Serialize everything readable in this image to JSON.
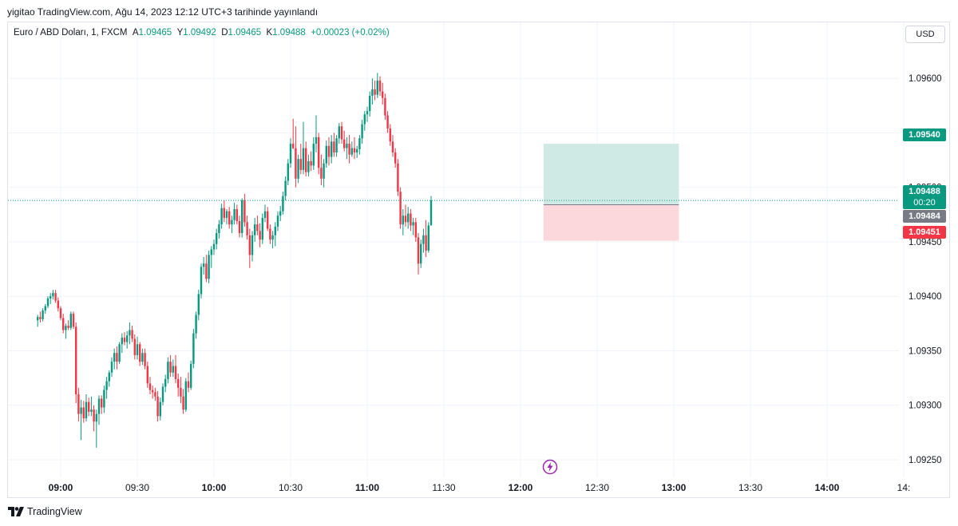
{
  "header": {
    "publish_line": "yigitao TradingView.com, Ağu 14, 2023 12:12 UTC+3 tarihinde yayınlandı"
  },
  "legend": {
    "symbol": "Euro / ABD Doları, 1, FXCM",
    "open_label": "A",
    "open": "1.09465",
    "high_label": "Y",
    "high": "1.09492",
    "low_label": "D",
    "low": "1.09465",
    "close_label": "K",
    "close": "1.09488",
    "change": "+0.00023 (+0.02%)"
  },
  "currency_button": "USD",
  "price_tags": {
    "last_price": "1.09488",
    "countdown": "00:20",
    "take_profit": "1.09540",
    "entry": "1.09484",
    "stop_loss": "1.09451"
  },
  "footer": {
    "brand": "TradingView"
  },
  "colors": {
    "up": "#089981",
    "down": "#f23645",
    "profit_zone": "#cfeae4",
    "loss_zone": "#fcd7dc",
    "grid": "#f0f3fa",
    "axis_text": "#131722"
  },
  "icons": {
    "flash": "lightning-bolt-icon",
    "logo": "tradingview-logo-icon"
  },
  "chart_data": {
    "type": "candlestick",
    "symbol": "EURUSD",
    "timeframe": "1",
    "ylim": [
      1.09215,
      1.09635
    ],
    "y_ticks": [
      "1.09250",
      "1.09300",
      "1.09350",
      "1.09400",
      "1.09450",
      "1.09500",
      "1.09550",
      "1.09600"
    ],
    "x_ticks": [
      {
        "label": "09:00",
        "minute": 540,
        "bold": true
      },
      {
        "label": "09:30",
        "minute": 570,
        "bold": false
      },
      {
        "label": "10:00",
        "minute": 600,
        "bold": true
      },
      {
        "label": "10:30",
        "minute": 630,
        "bold": false
      },
      {
        "label": "11:00",
        "minute": 660,
        "bold": true
      },
      {
        "label": "11:30",
        "minute": 690,
        "bold": false
      },
      {
        "label": "12:00",
        "minute": 720,
        "bold": true
      },
      {
        "label": "12:30",
        "minute": 750,
        "bold": false
      },
      {
        "label": "13:00",
        "minute": 780,
        "bold": true
      },
      {
        "label": "13:30",
        "minute": 810,
        "bold": false
      },
      {
        "label": "14:00",
        "minute": 840,
        "bold": true
      },
      {
        "label": "14:",
        "minute": 870,
        "bold": false
      }
    ],
    "xlim_minutes": [
      529.5,
      876
    ],
    "last_price": 1.09488,
    "position": {
      "start_minute": 729,
      "end_minute": 782,
      "take_profit": 1.0954,
      "entry": 1.09484,
      "stop_loss": 1.09451
    },
    "candles": [
      [
        1.09378,
        1.09383,
        1.09372,
        1.09381
      ],
      [
        1.09381,
        1.09386,
        1.09376,
        1.09379
      ],
      [
        1.09379,
        1.09389,
        1.09377,
        1.09387
      ],
      [
        1.09387,
        1.09393,
        1.09384,
        1.09391
      ],
      [
        1.09391,
        1.094,
        1.09389,
        1.09398
      ],
      [
        1.09398,
        1.09403,
        1.09393,
        1.094
      ],
      [
        1.094,
        1.09406,
        1.09397,
        1.09403
      ],
      [
        1.09403,
        1.09406,
        1.09394,
        1.09396
      ],
      [
        1.09396,
        1.09399,
        1.09386,
        1.09389
      ],
      [
        1.09389,
        1.09391,
        1.09378,
        1.0938
      ],
      [
        1.0938,
        1.09384,
        1.09366,
        1.09369
      ],
      [
        1.09369,
        1.09375,
        1.09361,
        1.09373
      ],
      [
        1.09373,
        1.09378,
        1.09369,
        1.09371
      ],
      [
        1.09371,
        1.09386,
        1.09369,
        1.09384
      ],
      [
        1.09384,
        1.09386,
        1.0937,
        1.09372
      ],
      [
        1.09372,
        1.09376,
        1.09302,
        1.0931
      ],
      [
        1.0931,
        1.09316,
        1.09285,
        1.09292
      ],
      [
        1.09292,
        1.09305,
        1.09268,
        1.09298
      ],
      [
        1.09298,
        1.09304,
        1.09284,
        1.09288
      ],
      [
        1.09288,
        1.0931,
        1.09285,
        1.09303
      ],
      [
        1.09303,
        1.09307,
        1.0929,
        1.09294
      ],
      [
        1.09294,
        1.09308,
        1.0929,
        1.09296
      ],
      [
        1.09296,
        1.093,
        1.09276,
        1.09285
      ],
      [
        1.09285,
        1.09296,
        1.09261,
        1.09292
      ],
      [
        1.09292,
        1.09309,
        1.09282,
        1.09306
      ],
      [
        1.09306,
        1.09309,
        1.09292,
        1.09298
      ],
      [
        1.09298,
        1.09318,
        1.09293,
        1.09314
      ],
      [
        1.09314,
        1.09326,
        1.09306,
        1.09322
      ],
      [
        1.09322,
        1.09332,
        1.09317,
        1.0933
      ],
      [
        1.0933,
        1.09344,
        1.09326,
        1.0934
      ],
      [
        1.0934,
        1.09352,
        1.09333,
        1.09348
      ],
      [
        1.09348,
        1.09354,
        1.09333,
        1.0934
      ],
      [
        1.0934,
        1.09358,
        1.09338,
        1.09356
      ],
      [
        1.09356,
        1.09366,
        1.09348,
        1.09362
      ],
      [
        1.09362,
        1.09367,
        1.09355,
        1.09358
      ],
      [
        1.09358,
        1.09368,
        1.09352,
        1.09364
      ],
      [
        1.09364,
        1.09376,
        1.09356,
        1.09369
      ],
      [
        1.09369,
        1.09373,
        1.09358,
        1.09361
      ],
      [
        1.09361,
        1.09365,
        1.09342,
        1.09346
      ],
      [
        1.09346,
        1.09363,
        1.09342,
        1.09356
      ],
      [
        1.09356,
        1.09358,
        1.09336,
        1.0934
      ],
      [
        1.0934,
        1.09352,
        1.09337,
        1.09348
      ],
      [
        1.09348,
        1.09352,
        1.09333,
        1.09336
      ],
      [
        1.09336,
        1.0934,
        1.09316,
        1.0932
      ],
      [
        1.0932,
        1.09326,
        1.0931,
        1.09314
      ],
      [
        1.09314,
        1.09318,
        1.09306,
        1.09312
      ],
      [
        1.09312,
        1.09316,
        1.09304,
        1.09308
      ],
      [
        1.09308,
        1.09313,
        1.09285,
        1.0929
      ],
      [
        1.0929,
        1.09307,
        1.09286,
        1.09303
      ],
      [
        1.09303,
        1.0932,
        1.093,
        1.09317
      ],
      [
        1.09317,
        1.09328,
        1.09312,
        1.09324
      ],
      [
        1.09324,
        1.09344,
        1.0932,
        1.0934
      ],
      [
        1.0934,
        1.09346,
        1.09326,
        1.0933
      ],
      [
        1.0933,
        1.09342,
        1.09326,
        1.09336
      ],
      [
        1.09336,
        1.09346,
        1.0932,
        1.09324
      ],
      [
        1.09324,
        1.09329,
        1.09308,
        1.09316
      ],
      [
        1.09316,
        1.09326,
        1.09302,
        1.09308
      ],
      [
        1.09308,
        1.09315,
        1.09292,
        1.09296
      ],
      [
        1.09296,
        1.09325,
        1.09294,
        1.09322
      ],
      [
        1.09322,
        1.0933,
        1.09312,
        1.09316
      ],
      [
        1.09316,
        1.09341,
        1.09314,
        1.09338
      ],
      [
        1.09338,
        1.0937,
        1.09334,
        1.09366
      ],
      [
        1.09366,
        1.09386,
        1.09361,
        1.09383
      ],
      [
        1.09383,
        1.09406,
        1.09378,
        1.09402
      ],
      [
        1.09402,
        1.0943,
        1.09398,
        1.09427
      ],
      [
        1.09427,
        1.09436,
        1.0942,
        1.0943
      ],
      [
        1.0943,
        1.09438,
        1.09413,
        1.09416
      ],
      [
        1.09416,
        1.09442,
        1.09412,
        1.09438
      ],
      [
        1.09438,
        1.09446,
        1.09426,
        1.09443
      ],
      [
        1.09443,
        1.09452,
        1.09438,
        1.09448
      ],
      [
        1.09448,
        1.09462,
        1.09443,
        1.09458
      ],
      [
        1.09458,
        1.0947,
        1.09453,
        1.09466
      ],
      [
        1.09466,
        1.09485,
        1.09462,
        1.09481
      ],
      [
        1.09481,
        1.09488,
        1.09468,
        1.09472
      ],
      [
        1.09472,
        1.0948,
        1.09466,
        1.09478
      ],
      [
        1.09478,
        1.09482,
        1.09462,
        1.09466
      ],
      [
        1.09466,
        1.09474,
        1.09458,
        1.0947
      ],
      [
        1.0947,
        1.09486,
        1.09466,
        1.0948
      ],
      [
        1.0948,
        1.09484,
        1.09466,
        1.09469
      ],
      [
        1.09469,
        1.09474,
        1.09454,
        1.09458
      ],
      [
        1.09458,
        1.0949,
        1.09454,
        1.09488
      ],
      [
        1.09488,
        1.09494,
        1.09464,
        1.09468
      ],
      [
        1.09468,
        1.09474,
        1.09452,
        1.09456
      ],
      [
        1.09456,
        1.09462,
        1.09426,
        1.09438
      ],
      [
        1.09438,
        1.0946,
        1.09432,
        1.09456
      ],
      [
        1.09456,
        1.09472,
        1.0945,
        1.09466
      ],
      [
        1.09466,
        1.09474,
        1.09456,
        1.0946
      ],
      [
        1.0946,
        1.09467,
        1.09445,
        1.09452
      ],
      [
        1.09452,
        1.09476,
        1.09448,
        1.09472
      ],
      [
        1.09472,
        1.09484,
        1.09468,
        1.09478
      ],
      [
        1.09478,
        1.09482,
        1.0946,
        1.09462
      ],
      [
        1.09462,
        1.09466,
        1.09448,
        1.09452
      ],
      [
        1.09452,
        1.0946,
        1.09444,
        1.09456
      ],
      [
        1.09456,
        1.09468,
        1.09446,
        1.09464
      ],
      [
        1.09464,
        1.09478,
        1.0946,
        1.09474
      ],
      [
        1.09474,
        1.09483,
        1.09469,
        1.09478
      ],
      [
        1.09478,
        1.09496,
        1.09475,
        1.09492
      ],
      [
        1.09492,
        1.0951,
        1.09488,
        1.09506
      ],
      [
        1.09506,
        1.09526,
        1.09502,
        1.09522
      ],
      [
        1.09522,
        1.09545,
        1.09518,
        1.0954
      ],
      [
        1.0954,
        1.09563,
        1.09535,
        1.09536
      ],
      [
        1.09536,
        1.09556,
        1.095,
        1.09508
      ],
      [
        1.09508,
        1.0953,
        1.09504,
        1.09526
      ],
      [
        1.09526,
        1.0954,
        1.09512,
        1.09516
      ],
      [
        1.09516,
        1.0956,
        1.09512,
        1.09536
      ],
      [
        1.09536,
        1.09542,
        1.0951,
        1.09514
      ],
      [
        1.09514,
        1.0953,
        1.0951,
        1.09524
      ],
      [
        1.09524,
        1.09533,
        1.09515,
        1.0952
      ],
      [
        1.0952,
        1.09546,
        1.09516,
        1.0954
      ],
      [
        1.0954,
        1.09566,
        1.09532,
        1.09546
      ],
      [
        1.09546,
        1.0955,
        1.09512,
        1.09518
      ],
      [
        1.09518,
        1.0953,
        1.09502,
        1.09508
      ],
      [
        1.09508,
        1.09526,
        1.095,
        1.09522
      ],
      [
        1.09522,
        1.09543,
        1.09518,
        1.09538
      ],
      [
        1.09538,
        1.09546,
        1.0952,
        1.09528
      ],
      [
        1.09528,
        1.09548,
        1.09522,
        1.09542
      ],
      [
        1.09542,
        1.0955,
        1.09528,
        1.09532
      ],
      [
        1.09532,
        1.09548,
        1.09528,
        1.09545
      ],
      [
        1.09545,
        1.09559,
        1.0954,
        1.09556
      ],
      [
        1.09556,
        1.0956,
        1.0954,
        1.09544
      ],
      [
        1.09544,
        1.09552,
        1.09533,
        1.09536
      ],
      [
        1.09536,
        1.09546,
        1.09526,
        1.0954
      ],
      [
        1.0954,
        1.09548,
        1.09522,
        1.0953
      ],
      [
        1.0953,
        1.09542,
        1.09528,
        1.09536
      ],
      [
        1.09536,
        1.09546,
        1.09526,
        1.09532
      ],
      [
        1.09532,
        1.09538,
        1.09527,
        1.09535
      ],
      [
        1.09535,
        1.09548,
        1.0953,
        1.09545
      ],
      [
        1.09545,
        1.09562,
        1.0954,
        1.09558
      ],
      [
        1.09558,
        1.0957,
        1.09552,
        1.09567
      ],
      [
        1.09567,
        1.09574,
        1.0956,
        1.0957
      ],
      [
        1.0957,
        1.09588,
        1.09565,
        1.09584
      ],
      [
        1.09584,
        1.096,
        1.09576,
        1.0959
      ],
      [
        1.0959,
        1.09598,
        1.0958,
        1.09585
      ],
      [
        1.09585,
        1.09605,
        1.09582,
        1.09598
      ],
      [
        1.09598,
        1.09602,
        1.09584,
        1.09588
      ],
      [
        1.09588,
        1.09596,
        1.09576,
        1.09582
      ],
      [
        1.09582,
        1.09586,
        1.09562,
        1.09566
      ],
      [
        1.09566,
        1.0957,
        1.0955,
        1.09554
      ],
      [
        1.09554,
        1.09558,
        1.09538,
        1.09542
      ],
      [
        1.09542,
        1.09548,
        1.09528,
        1.09532
      ],
      [
        1.09532,
        1.09536,
        1.09518,
        1.09522
      ],
      [
        1.09522,
        1.09526,
        1.09492,
        1.09496
      ],
      [
        1.09496,
        1.095,
        1.09462,
        1.09466
      ],
      [
        1.09466,
        1.0948,
        1.09456,
        1.09474
      ],
      [
        1.09474,
        1.09484,
        1.09464,
        1.09468
      ],
      [
        1.09468,
        1.09482,
        1.09462,
        1.09476
      ],
      [
        1.09476,
        1.0948,
        1.0946,
        1.09465
      ],
      [
        1.09465,
        1.09472,
        1.09456,
        1.09468
      ],
      [
        1.09468,
        1.09472,
        1.0945,
        1.09454
      ],
      [
        1.09454,
        1.09458,
        1.0942,
        1.0943
      ],
      [
        1.0943,
        1.09452,
        1.09426,
        1.09448
      ],
      [
        1.09448,
        1.09462,
        1.0944,
        1.09456
      ],
      [
        1.09456,
        1.0947,
        1.09436,
        1.09442
      ],
      [
        1.09442,
        1.09468,
        1.0944,
        1.09465
      ],
      [
        1.09465,
        1.09492,
        1.09465,
        1.09488
      ]
    ]
  }
}
